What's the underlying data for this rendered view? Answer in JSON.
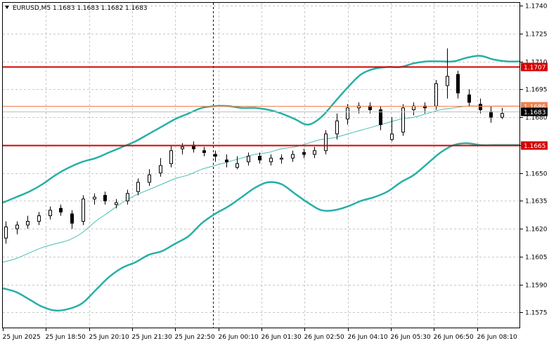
{
  "header": {
    "symbol_line": "EURUSD,M5  1.1683 1.1683 1.1682 1.1683"
  },
  "chart_data": {
    "type": "candlestick",
    "symbol": "EURUSD",
    "timeframe": "M5",
    "ohlc_last": {
      "open": 1.1683,
      "high": 1.1683,
      "low": 1.1682,
      "close": 1.1683
    },
    "ylim": [
      1.15665,
      1.17415
    ],
    "y_ticks": [
      "1.1740",
      "1.1725",
      "1.1710",
      "1.1695",
      "1.1680",
      "1.1665",
      "1.1650",
      "1.1635",
      "1.1620",
      "1.1605",
      "1.1590",
      "1.1575"
    ],
    "x_ticks": [
      "25 Jun 2025",
      "25 Jun 18:50",
      "25 Jun 20:10",
      "25 Jun 21:30",
      "25 Jun 22:50",
      "26 Jun 00:10",
      "26 Jun 01:30",
      "26 Jun 02:50",
      "26 Jun 04:10",
      "26 Jun 05:30",
      "26 Jun 06:50",
      "26 Jun 08:10"
    ],
    "grid": true,
    "period_separator": "26 Jun 00:00",
    "price_lines": [
      {
        "value": 1.1707,
        "label": "1.1707",
        "color": "#d40000"
      },
      {
        "value": 1.1686,
        "label": "1.1686",
        "color": "#f08050"
      },
      {
        "value": 1.1665,
        "label": "1.1665",
        "color": "#d40000"
      }
    ],
    "current_price": {
      "value": 1.1683,
      "label": "1.1683",
      "color": "#000000"
    },
    "bollinger_color": "#26b0a6",
    "ma_color": "#47bdb5",
    "bollinger_upper": [
      1.1634,
      1.1637,
      1.164,
      1.1644,
      1.1649,
      1.1653,
      1.1656,
      1.1658,
      1.1661,
      1.1664,
      1.1667,
      1.1671,
      1.1675,
      1.1679,
      1.1682,
      1.1685,
      1.1686,
      1.1686,
      1.1685,
      1.1685,
      1.1684,
      1.1682,
      1.1679,
      1.1676,
      1.168,
      1.1688,
      1.1696,
      1.1703,
      1.1706,
      1.1707,
      1.1707,
      1.1709,
      1.171,
      1.171,
      1.171,
      1.1712,
      1.1713,
      1.1711,
      1.171,
      1.171
    ],
    "bollinger_lower": [
      1.1588,
      1.1586,
      1.1582,
      1.1578,
      1.1576,
      1.1577,
      1.158,
      1.1587,
      1.1594,
      1.1599,
      1.1602,
      1.1606,
      1.1608,
      1.1612,
      1.1616,
      1.1623,
      1.1628,
      1.1632,
      1.1637,
      1.1642,
      1.1645,
      1.1644,
      1.1639,
      1.1634,
      1.163,
      1.163,
      1.1632,
      1.1635,
      1.1637,
      1.164,
      1.1645,
      1.1649,
      1.1655,
      1.1661,
      1.1665,
      1.1666,
      1.1665,
      1.1665,
      1.1665,
      1.1665
    ],
    "moving_average": [
      1.1602,
      1.1604,
      1.1607,
      1.161,
      1.1612,
      1.1614,
      1.1618,
      1.1624,
      1.1629,
      1.1634,
      1.1638,
      1.1641,
      1.1644,
      1.1647,
      1.1649,
      1.1652,
      1.1654,
      1.1656,
      1.1658,
      1.166,
      1.1661,
      1.1663,
      1.1664,
      1.1666,
      1.1668,
      1.1669,
      1.1671,
      1.1673,
      1.1675,
      1.1677,
      1.1679,
      1.168,
      1.1682,
      1.1684,
      1.1685,
      1.1686,
      1.1686,
      1.1686,
      1.1686,
      1.1686
    ],
    "candle_close": [
      1.1621,
      1.1622,
      1.1624,
      1.1627,
      1.163,
      1.1629,
      1.1623,
      1.1636,
      1.1637,
      1.1635,
      1.1634,
      1.1639,
      1.1645,
      1.1649,
      1.1654,
      1.1662,
      1.1664,
      1.1663,
      1.1661,
      1.1659,
      1.1656,
      1.1655,
      1.1659,
      1.1657,
      1.1658,
      1.1658,
      1.166,
      1.166,
      1.1662,
      1.1671,
      1.1678,
      1.1685,
      1.1686,
      1.1684,
      1.1676,
      1.1671,
      1.1685,
      1.1686,
      1.1685,
      1.1698,
      1.1702,
      1.1693,
      1.1688,
      1.1684,
      1.168,
      1.1682
    ],
    "candle_open": [
      1.1615,
      1.162,
      1.1622,
      1.1624,
      1.1627,
      1.1631,
      1.1628,
      1.1624,
      1.1636,
      1.1638,
      1.1633,
      1.1635,
      1.164,
      1.1645,
      1.165,
      1.1655,
      1.1663,
      1.1665,
      1.1662,
      1.166,
      1.1657,
      1.1653,
      1.1656,
      1.1659,
      1.1656,
      1.1658,
      1.1658,
      1.1661,
      1.166,
      1.1662,
      1.1671,
      1.1679,
      1.1685,
      1.1686,
      1.1684,
      1.1668,
      1.1672,
      1.1684,
      1.1686,
      1.1686,
      1.1697,
      1.1703,
      1.1692,
      1.1687,
      1.1683,
      1.168
    ],
    "candle_high": [
      1.1624,
      1.1624,
      1.1627,
      1.1629,
      1.1632,
      1.1633,
      1.163,
      1.1638,
      1.1639,
      1.164,
      1.1636,
      1.1641,
      1.1647,
      1.1652,
      1.1658,
      1.1665,
      1.1666,
      1.1667,
      1.1664,
      1.1662,
      1.166,
      1.1659,
      1.1661,
      1.1661,
      1.166,
      1.166,
      1.1662,
      1.1663,
      1.1664,
      1.1673,
      1.1682,
      1.1687,
      1.1688,
      1.1688,
      1.1686,
      1.168,
      1.1687,
      1.1688,
      1.1688,
      1.17,
      1.1717,
      1.1705,
      1.1695,
      1.169,
      1.1686,
      1.1685
    ],
    "candle_low": [
      1.1612,
      1.1617,
      1.162,
      1.1622,
      1.1625,
      1.1627,
      1.162,
      1.1622,
      1.1633,
      1.1633,
      1.1631,
      1.1633,
      1.1638,
      1.1643,
      1.1648,
      1.1653,
      1.166,
      1.1661,
      1.1659,
      1.1656,
      1.1653,
      1.1652,
      1.1654,
      1.1655,
      1.1654,
      1.1655,
      1.1656,
      1.1658,
      1.1658,
      1.166,
      1.1668,
      1.1676,
      1.1682,
      1.1682,
      1.1673,
      1.1667,
      1.167,
      1.1681,
      1.1682,
      1.1684,
      1.169,
      1.169,
      1.1686,
      1.1682,
      1.1677,
      1.1679
    ]
  }
}
